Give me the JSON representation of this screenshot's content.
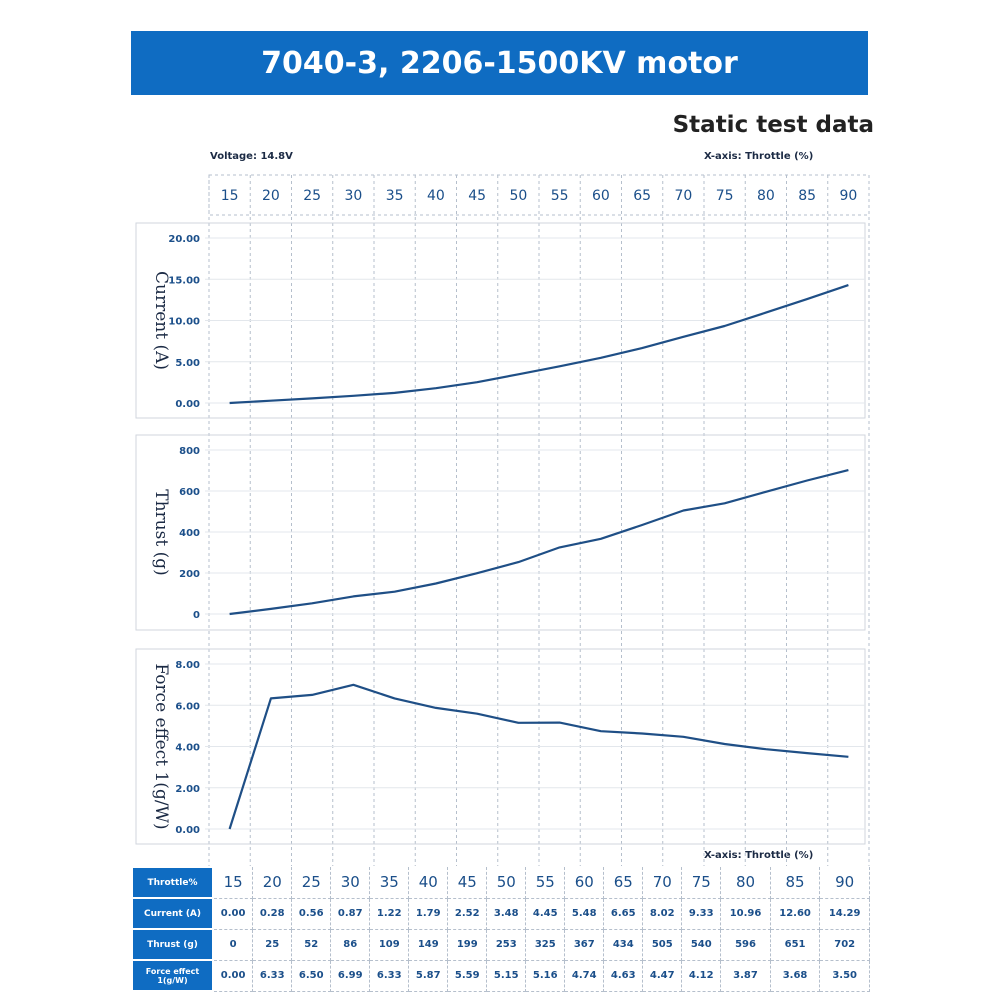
{
  "header": {
    "title": "7040-3, 2206-1500KV motor",
    "subtitle": "Static test data"
  },
  "labels": {
    "voltage": "Voltage: 14.8V",
    "x_axis_top": "X-axis: Throttle (%)",
    "x_axis_mid": "X-axis: Throttle (%)"
  },
  "table": {
    "row_labels": [
      "Throttle%",
      "Current (A)",
      "Thrust (g)",
      "Force effect 1(g/W)"
    ],
    "throttle": [
      "15",
      "20",
      "25",
      "30",
      "35",
      "40",
      "45",
      "50",
      "55",
      "60",
      "65",
      "70",
      "75",
      "80",
      "85",
      "90"
    ],
    "current": [
      "0.00",
      "0.28",
      "0.56",
      "0.87",
      "1.22",
      "1.79",
      "2.52",
      "3.48",
      "4.45",
      "5.48",
      "6.65",
      "8.02",
      "9.33",
      "10.96",
      "12.60",
      "14.29"
    ],
    "thrust": [
      "0",
      "25",
      "52",
      "86",
      "109",
      "149",
      "199",
      "253",
      "325",
      "367",
      "434",
      "505",
      "540",
      "596",
      "651",
      "702"
    ],
    "force": [
      "0.00",
      "6.33",
      "6.50",
      "6.99",
      "6.33",
      "5.87",
      "5.59",
      "5.15",
      "5.16",
      "4.74",
      "4.63",
      "4.47",
      "4.12",
      "3.87",
      "3.68",
      "3.50"
    ]
  },
  "chart_data": [
    {
      "type": "line",
      "ylabel": "Current (A)",
      "x": [
        15,
        20,
        25,
        30,
        35,
        40,
        45,
        50,
        55,
        60,
        65,
        70,
        75,
        80,
        85,
        90
      ],
      "y": [
        0.0,
        0.28,
        0.56,
        0.87,
        1.22,
        1.79,
        2.52,
        3.48,
        4.45,
        5.48,
        6.65,
        8.02,
        9.33,
        10.96,
        12.6,
        14.29
      ],
      "ylim": [
        0,
        20
      ],
      "yticks": [
        "0.00",
        "5.00",
        "10.00",
        "15.00",
        "20.00"
      ],
      "ytick_values": [
        0,
        5,
        10,
        15,
        20
      ]
    },
    {
      "type": "line",
      "ylabel": "Thrust (g)",
      "x": [
        15,
        20,
        25,
        30,
        35,
        40,
        45,
        50,
        55,
        60,
        65,
        70,
        75,
        80,
        85,
        90
      ],
      "y": [
        0,
        25,
        52,
        86,
        109,
        149,
        199,
        253,
        325,
        367,
        434,
        505,
        540,
        596,
        651,
        702
      ],
      "ylim": [
        0,
        800
      ],
      "yticks": [
        "0",
        "200",
        "400",
        "600",
        "800"
      ],
      "ytick_values": [
        0,
        200,
        400,
        600,
        800
      ]
    },
    {
      "type": "line",
      "ylabel": "Force effect 1(g/W)",
      "x": [
        15,
        20,
        25,
        30,
        35,
        40,
        45,
        50,
        55,
        60,
        65,
        70,
        75,
        80,
        85,
        90
      ],
      "y": [
        0.0,
        6.33,
        6.5,
        6.99,
        6.33,
        5.87,
        5.59,
        5.15,
        5.16,
        4.74,
        4.63,
        4.47,
        4.12,
        3.87,
        3.68,
        3.5
      ],
      "ylim": [
        0,
        8
      ],
      "yticks": [
        "0.00",
        "2.00",
        "4.00",
        "6.00",
        "8.00"
      ],
      "ytick_values": [
        0,
        2,
        4,
        6,
        8
      ]
    }
  ],
  "colors": {
    "banner": "#0f6cc2",
    "line": "#1f4f86",
    "text": "#1b4f8a"
  }
}
